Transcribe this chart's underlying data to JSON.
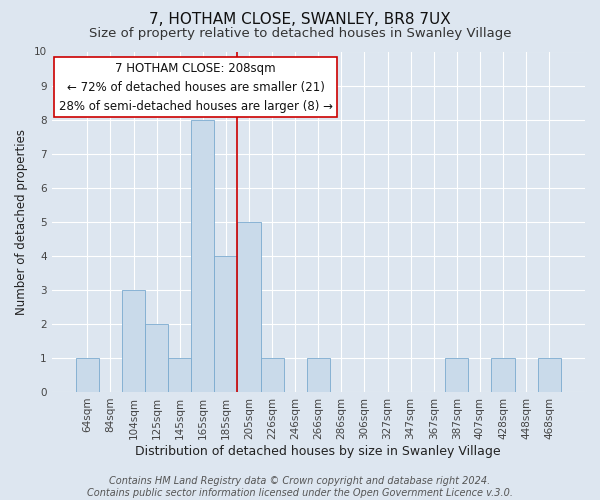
{
  "title": "7, HOTHAM CLOSE, SWANLEY, BR8 7UX",
  "subtitle": "Size of property relative to detached houses in Swanley Village",
  "xlabel": "Distribution of detached houses by size in Swanley Village",
  "ylabel": "Number of detached properties",
  "categories": [
    "64sqm",
    "84sqm",
    "104sqm",
    "125sqm",
    "145sqm",
    "165sqm",
    "185sqm",
    "205sqm",
    "226sqm",
    "246sqm",
    "266sqm",
    "286sqm",
    "306sqm",
    "327sqm",
    "347sqm",
    "367sqm",
    "387sqm",
    "407sqm",
    "428sqm",
    "448sqm",
    "468sqm"
  ],
  "values": [
    1,
    0,
    3,
    2,
    1,
    8,
    4,
    5,
    1,
    0,
    1,
    0,
    0,
    0,
    0,
    0,
    1,
    0,
    1,
    0,
    1
  ],
  "bar_color": "#c9daea",
  "bar_edge_color": "#7aaacf",
  "subject_line_color": "#cc0000",
  "ylim": [
    0,
    10
  ],
  "yticks": [
    0,
    1,
    2,
    3,
    4,
    5,
    6,
    7,
    8,
    9,
    10
  ],
  "annotation_title": "7 HOTHAM CLOSE: 208sqm",
  "annotation_line1": "← 72% of detached houses are smaller (21)",
  "annotation_line2": "28% of semi-detached houses are larger (8) →",
  "annotation_box_edge": "#cc0000",
  "footer_line1": "Contains HM Land Registry data © Crown copyright and database right 2024.",
  "footer_line2": "Contains public sector information licensed under the Open Government Licence v.3.0.",
  "background_color": "#dde6f0",
  "plot_background_color": "#dde6f0",
  "title_fontsize": 11,
  "subtitle_fontsize": 9.5,
  "xlabel_fontsize": 9,
  "ylabel_fontsize": 8.5,
  "annotation_fontsize": 8.5,
  "footer_fontsize": 7,
  "tick_fontsize": 7.5
}
